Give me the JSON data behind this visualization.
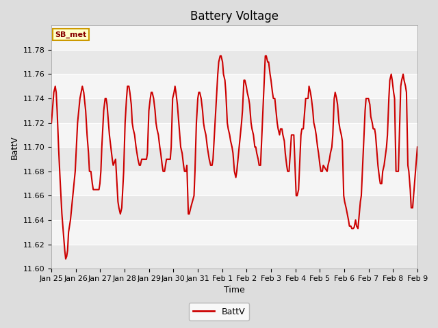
{
  "title": "Battery Voltage",
  "xlabel": "Time",
  "ylabel": "BattV",
  "ylim": [
    11.6,
    11.8
  ],
  "yticks": [
    11.6,
    11.62,
    11.64,
    11.66,
    11.68,
    11.7,
    11.72,
    11.74,
    11.76,
    11.78
  ],
  "line_color": "#cc0000",
  "bg_color": "#dddddd",
  "plot_bg_color": "#f5f5f5",
  "band_colors": [
    "#e8e8e8",
    "#f5f5f5"
  ],
  "legend_label": "BattV",
  "annotation_text": "SB_met",
  "annotation_bg": "#ffffcc",
  "annotation_border": "#cc9900",
  "x_labels": [
    "Jan 25",
    "Jan 26",
    "Jan 27",
    "Jan 28",
    "Jan 29",
    "Jan 30",
    "Jan 31",
    "Feb 1",
    "Feb 2",
    "Feb 3",
    "Feb 4",
    "Feb 5",
    "Feb 6",
    "Feb 7",
    "Feb 8",
    "Feb 9"
  ],
  "title_fontsize": 12,
  "axis_fontsize": 9,
  "tick_fontsize": 8,
  "data_points": [
    [
      0.0,
      11.72
    ],
    [
      0.02,
      11.73
    ],
    [
      0.05,
      11.745
    ],
    [
      0.08,
      11.75
    ],
    [
      0.1,
      11.745
    ],
    [
      0.12,
      11.73
    ],
    [
      0.15,
      11.7
    ],
    [
      0.18,
      11.675
    ],
    [
      0.2,
      11.66
    ],
    [
      0.22,
      11.645
    ],
    [
      0.24,
      11.635
    ],
    [
      0.26,
      11.625
    ],
    [
      0.28,
      11.615
    ],
    [
      0.3,
      11.608
    ],
    [
      0.32,
      11.61
    ],
    [
      0.34,
      11.615
    ],
    [
      0.36,
      11.63
    ],
    [
      0.4,
      11.64
    ],
    [
      0.5,
      11.68
    ],
    [
      0.55,
      11.72
    ],
    [
      0.6,
      11.74
    ],
    [
      0.65,
      11.75
    ],
    [
      0.68,
      11.745
    ],
    [
      0.72,
      11.73
    ],
    [
      0.75,
      11.71
    ],
    [
      0.78,
      11.695
    ],
    [
      0.8,
      11.68
    ],
    [
      0.83,
      11.68
    ],
    [
      0.86,
      11.67
    ],
    [
      0.88,
      11.665
    ],
    [
      1.0,
      11.665
    ],
    [
      1.02,
      11.67
    ],
    [
      1.04,
      11.68
    ],
    [
      1.06,
      11.7
    ],
    [
      1.1,
      11.73
    ],
    [
      1.13,
      11.74
    ],
    [
      1.15,
      11.74
    ],
    [
      1.17,
      11.735
    ],
    [
      1.2,
      11.72
    ],
    [
      1.22,
      11.71
    ],
    [
      1.25,
      11.7
    ],
    [
      1.28,
      11.69
    ],
    [
      1.3,
      11.685
    ],
    [
      1.35,
      11.69
    ],
    [
      1.4,
      11.655
    ],
    [
      1.42,
      11.65
    ],
    [
      1.45,
      11.645
    ],
    [
      1.48,
      11.65
    ],
    [
      1.52,
      11.68
    ],
    [
      1.55,
      11.72
    ],
    [
      1.58,
      11.74
    ],
    [
      1.6,
      11.75
    ],
    [
      1.63,
      11.75
    ],
    [
      1.65,
      11.745
    ],
    [
      1.68,
      11.735
    ],
    [
      1.7,
      11.72
    ],
    [
      1.72,
      11.715
    ],
    [
      1.75,
      11.71
    ],
    [
      1.78,
      11.7
    ],
    [
      1.8,
      11.695
    ],
    [
      1.82,
      11.69
    ],
    [
      1.85,
      11.685
    ],
    [
      1.87,
      11.685
    ],
    [
      1.9,
      11.69
    ],
    [
      2.0,
      11.69
    ],
    [
      2.02,
      11.695
    ],
    [
      2.05,
      11.73
    ],
    [
      2.08,
      11.74
    ],
    [
      2.1,
      11.745
    ],
    [
      2.12,
      11.745
    ],
    [
      2.15,
      11.74
    ],
    [
      2.18,
      11.73
    ],
    [
      2.2,
      11.72
    ],
    [
      2.22,
      11.715
    ],
    [
      2.25,
      11.71
    ],
    [
      2.28,
      11.7
    ],
    [
      2.3,
      11.695
    ],
    [
      2.33,
      11.685
    ],
    [
      2.35,
      11.68
    ],
    [
      2.38,
      11.68
    ],
    [
      2.4,
      11.685
    ],
    [
      2.42,
      11.69
    ],
    [
      2.5,
      11.69
    ],
    [
      2.52,
      11.7
    ],
    [
      2.55,
      11.74
    ],
    [
      2.58,
      11.745
    ],
    [
      2.6,
      11.75
    ],
    [
      2.62,
      11.745
    ],
    [
      2.65,
      11.735
    ],
    [
      2.68,
      11.72
    ],
    [
      2.7,
      11.71
    ],
    [
      2.72,
      11.7
    ],
    [
      2.75,
      11.695
    ],
    [
      2.78,
      11.685
    ],
    [
      2.8,
      11.68
    ],
    [
      2.83,
      11.68
    ],
    [
      2.85,
      11.685
    ],
    [
      2.88,
      11.645
    ],
    [
      2.9,
      11.645
    ],
    [
      2.93,
      11.65
    ],
    [
      3.0,
      11.66
    ],
    [
      3.02,
      11.68
    ],
    [
      3.05,
      11.72
    ],
    [
      3.08,
      11.74
    ],
    [
      3.1,
      11.745
    ],
    [
      3.12,
      11.745
    ],
    [
      3.15,
      11.74
    ],
    [
      3.18,
      11.73
    ],
    [
      3.2,
      11.72
    ],
    [
      3.22,
      11.715
    ],
    [
      3.25,
      11.71
    ],
    [
      3.28,
      11.7
    ],
    [
      3.3,
      11.695
    ],
    [
      3.32,
      11.69
    ],
    [
      3.35,
      11.685
    ],
    [
      3.38,
      11.685
    ],
    [
      3.4,
      11.69
    ],
    [
      3.5,
      11.76
    ],
    [
      3.52,
      11.77
    ],
    [
      3.55,
      11.775
    ],
    [
      3.57,
      11.775
    ],
    [
      3.6,
      11.77
    ],
    [
      3.62,
      11.76
    ],
    [
      3.65,
      11.755
    ],
    [
      3.67,
      11.745
    ],
    [
      3.7,
      11.72
    ],
    [
      3.72,
      11.715
    ],
    [
      3.75,
      11.71
    ],
    [
      3.77,
      11.705
    ],
    [
      3.8,
      11.7
    ],
    [
      3.82,
      11.695
    ],
    [
      3.85,
      11.68
    ],
    [
      3.88,
      11.675
    ],
    [
      3.9,
      11.68
    ],
    [
      4.0,
      11.72
    ],
    [
      4.02,
      11.73
    ],
    [
      4.05,
      11.755
    ],
    [
      4.07,
      11.755
    ],
    [
      4.1,
      11.75
    ],
    [
      4.12,
      11.745
    ],
    [
      4.15,
      11.74
    ],
    [
      4.17,
      11.735
    ],
    [
      4.2,
      11.72
    ],
    [
      4.22,
      11.715
    ],
    [
      4.25,
      11.71
    ],
    [
      4.28,
      11.7
    ],
    [
      4.3,
      11.7
    ],
    [
      4.32,
      11.695
    ],
    [
      4.35,
      11.69
    ],
    [
      4.37,
      11.685
    ],
    [
      4.4,
      11.685
    ],
    [
      4.5,
      11.775
    ],
    [
      4.52,
      11.775
    ],
    [
      4.55,
      11.77
    ],
    [
      4.57,
      11.77
    ],
    [
      4.6,
      11.76
    ],
    [
      4.62,
      11.755
    ],
    [
      4.65,
      11.745
    ],
    [
      4.67,
      11.74
    ],
    [
      4.7,
      11.74
    ],
    [
      4.75,
      11.72
    ],
    [
      4.77,
      11.715
    ],
    [
      4.8,
      11.71
    ],
    [
      4.82,
      11.715
    ],
    [
      4.85,
      11.715
    ],
    [
      4.87,
      11.71
    ],
    [
      4.9,
      11.705
    ],
    [
      4.92,
      11.695
    ],
    [
      4.95,
      11.685
    ],
    [
      4.97,
      11.68
    ],
    [
      5.0,
      11.68
    ],
    [
      5.05,
      11.71
    ],
    [
      5.08,
      11.71
    ],
    [
      5.1,
      11.71
    ],
    [
      5.15,
      11.66
    ],
    [
      5.17,
      11.66
    ],
    [
      5.2,
      11.665
    ],
    [
      5.25,
      11.71
    ],
    [
      5.27,
      11.715
    ],
    [
      5.3,
      11.715
    ],
    [
      5.35,
      11.74
    ],
    [
      5.37,
      11.74
    ],
    [
      5.4,
      11.74
    ],
    [
      5.42,
      11.75
    ],
    [
      5.45,
      11.745
    ],
    [
      5.47,
      11.74
    ],
    [
      5.5,
      11.73
    ],
    [
      5.52,
      11.72
    ],
    [
      5.55,
      11.715
    ],
    [
      5.57,
      11.71
    ],
    [
      5.6,
      11.7
    ],
    [
      5.62,
      11.695
    ],
    [
      5.65,
      11.685
    ],
    [
      5.67,
      11.68
    ],
    [
      5.7,
      11.68
    ],
    [
      5.72,
      11.685
    ],
    [
      5.8,
      11.68
    ],
    [
      5.82,
      11.685
    ],
    [
      5.85,
      11.69
    ],
    [
      5.87,
      11.695
    ],
    [
      5.9,
      11.7
    ],
    [
      5.92,
      11.71
    ],
    [
      5.95,
      11.74
    ],
    [
      5.97,
      11.745
    ],
    [
      6.0,
      11.74
    ],
    [
      6.02,
      11.735
    ],
    [
      6.05,
      11.72
    ],
    [
      6.07,
      11.715
    ],
    [
      6.1,
      11.71
    ],
    [
      6.12,
      11.705
    ],
    [
      6.15,
      11.66
    ],
    [
      6.17,
      11.655
    ],
    [
      6.2,
      11.65
    ],
    [
      6.25,
      11.64
    ],
    [
      6.27,
      11.635
    ],
    [
      6.3,
      11.635
    ],
    [
      6.32,
      11.633
    ],
    [
      6.35,
      11.633
    ],
    [
      6.37,
      11.634
    ],
    [
      6.4,
      11.64
    ],
    [
      6.42,
      11.635
    ],
    [
      6.45,
      11.633
    ],
    [
      6.5,
      11.655
    ],
    [
      6.52,
      11.66
    ],
    [
      6.6,
      11.73
    ],
    [
      6.62,
      11.74
    ],
    [
      6.65,
      11.74
    ],
    [
      6.67,
      11.74
    ],
    [
      6.7,
      11.735
    ],
    [
      6.72,
      11.725
    ],
    [
      6.75,
      11.72
    ],
    [
      6.77,
      11.715
    ],
    [
      6.8,
      11.715
    ],
    [
      6.82,
      11.71
    ],
    [
      6.85,
      11.695
    ],
    [
      6.87,
      11.685
    ],
    [
      6.9,
      11.675
    ],
    [
      6.92,
      11.67
    ],
    [
      6.95,
      11.67
    ],
    [
      6.97,
      11.68
    ],
    [
      7.0,
      11.685
    ],
    [
      7.05,
      11.7
    ],
    [
      7.07,
      11.71
    ],
    [
      7.1,
      11.74
    ],
    [
      7.12,
      11.755
    ],
    [
      7.15,
      11.76
    ],
    [
      7.17,
      11.755
    ],
    [
      7.2,
      11.745
    ],
    [
      7.22,
      11.74
    ],
    [
      7.25,
      11.68
    ],
    [
      7.27,
      11.68
    ],
    [
      7.3,
      11.68
    ],
    [
      7.35,
      11.75
    ],
    [
      7.37,
      11.755
    ],
    [
      7.4,
      11.76
    ],
    [
      7.42,
      11.755
    ],
    [
      7.45,
      11.75
    ],
    [
      7.47,
      11.745
    ],
    [
      7.5,
      11.685
    ],
    [
      7.52,
      11.68
    ],
    [
      7.55,
      11.665
    ],
    [
      7.57,
      11.65
    ],
    [
      7.6,
      11.65
    ],
    [
      7.7,
      11.7
    ]
  ]
}
